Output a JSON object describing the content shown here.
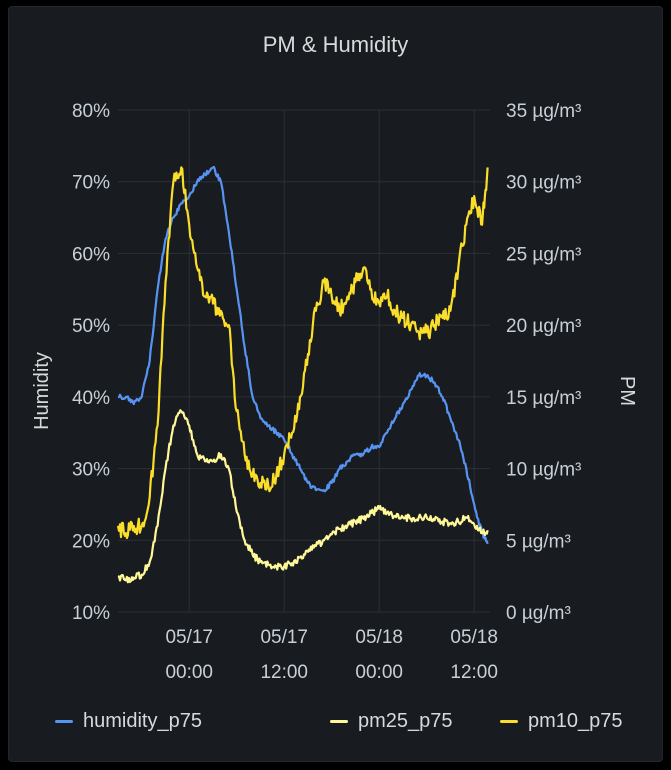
{
  "chart_data": {
    "type": "line",
    "title": "PM & Humidity",
    "y_left": {
      "label": "Humidity",
      "ticks": [
        "80%",
        "70%",
        "60%",
        "50%",
        "40%",
        "30%",
        "20%",
        "10%"
      ],
      "ylim": [
        10,
        80
      ]
    },
    "y_right": {
      "label": "PM",
      "ticks": [
        "35 µg/m³",
        "30 µg/m³",
        "25 µg/m³",
        "20 µg/m³",
        "15 µg/m³",
        "10 µg/m³",
        "5 µg/m³",
        "0 µg/m³"
      ],
      "ylim": [
        0,
        35
      ]
    },
    "x_ticks": [
      {
        "line1": "05/17",
        "line2": "00:00"
      },
      {
        "line1": "05/17",
        "line2": "12:00"
      },
      {
        "line1": "05/18",
        "line2": "00:00"
      },
      {
        "line1": "05/18",
        "line2": "12:00"
      }
    ],
    "x_tick_hours": [
      0,
      12,
      24,
      36
    ],
    "x_range_hours": [
      -9,
      38
    ],
    "grid": true,
    "legend_position": "bottom",
    "series": [
      {
        "name": "humidity_p75",
        "axis": "left",
        "color": "#5794f2",
        "points": [
          [
            -9,
            40
          ],
          [
            -8,
            40
          ],
          [
            -7,
            39
          ],
          [
            -6,
            40
          ],
          [
            -5,
            45
          ],
          [
            -4,
            55
          ],
          [
            -3,
            62
          ],
          [
            -2,
            65
          ],
          [
            -1,
            67
          ],
          [
            0,
            68
          ],
          [
            1,
            70
          ],
          [
            2,
            71
          ],
          [
            3,
            72
          ],
          [
            4,
            70
          ],
          [
            5,
            63
          ],
          [
            6,
            55
          ],
          [
            7,
            47
          ],
          [
            8,
            40
          ],
          [
            9,
            37
          ],
          [
            10,
            36
          ],
          [
            11,
            35
          ],
          [
            12,
            34
          ],
          [
            13,
            32
          ],
          [
            14,
            30
          ],
          [
            15,
            28
          ],
          [
            16,
            27
          ],
          [
            17,
            27
          ],
          [
            18,
            28
          ],
          [
            19,
            30
          ],
          [
            20,
            31
          ],
          [
            21,
            32
          ],
          [
            22,
            32
          ],
          [
            23,
            33
          ],
          [
            24,
            33
          ],
          [
            25,
            35
          ],
          [
            26,
            37
          ],
          [
            27,
            39
          ],
          [
            28,
            41
          ],
          [
            29,
            43
          ],
          [
            30,
            43
          ],
          [
            31,
            42
          ],
          [
            32,
            40
          ],
          [
            33,
            37
          ],
          [
            34,
            34
          ],
          [
            35,
            30
          ],
          [
            36,
            25
          ],
          [
            37,
            21
          ],
          [
            37.7,
            19.5
          ]
        ]
      },
      {
        "name": "pm25_p75",
        "axis": "right",
        "color": "#fff899",
        "points": [
          [
            -9,
            2.5
          ],
          [
            -8,
            2.2
          ],
          [
            -7,
            2.4
          ],
          [
            -6,
            2.6
          ],
          [
            -5,
            3.5
          ],
          [
            -4,
            6
          ],
          [
            -3,
            10
          ],
          [
            -2,
            13
          ],
          [
            -1,
            14
          ],
          [
            0,
            13
          ],
          [
            1,
            11
          ],
          [
            2,
            10.5
          ],
          [
            3,
            10.5
          ],
          [
            4,
            11
          ],
          [
            5,
            10
          ],
          [
            6,
            7
          ],
          [
            7,
            5
          ],
          [
            8,
            4
          ],
          [
            9,
            3.5
          ],
          [
            10,
            3.3
          ],
          [
            11,
            3.2
          ],
          [
            12,
            3.2
          ],
          [
            13,
            3.4
          ],
          [
            14,
            3.8
          ],
          [
            15,
            4.2
          ],
          [
            16,
            4.6
          ],
          [
            17,
            5
          ],
          [
            18,
            5.4
          ],
          [
            19,
            5.8
          ],
          [
            20,
            6
          ],
          [
            21,
            6.3
          ],
          [
            22,
            6.5
          ],
          [
            23,
            6.9
          ],
          [
            24,
            7.2
          ],
          [
            25,
            6.9
          ],
          [
            26,
            6.7
          ],
          [
            27,
            6.6
          ],
          [
            28,
            6.5
          ],
          [
            29,
            6.6
          ],
          [
            30,
            6.6
          ],
          [
            31,
            6.4
          ],
          [
            32,
            6.3
          ],
          [
            33,
            6.2
          ],
          [
            34,
            6.3
          ],
          [
            35,
            6.6
          ],
          [
            36,
            6.1
          ],
          [
            37,
            5.5
          ],
          [
            37.7,
            5.7
          ]
        ]
      },
      {
        "name": "pm10_p75",
        "axis": "right",
        "color": "#fade2a",
        "points": [
          [
            -9,
            6
          ],
          [
            -8,
            5.5
          ],
          [
            -7,
            6
          ],
          [
            -6,
            6
          ],
          [
            -5,
            8
          ],
          [
            -4,
            13
          ],
          [
            -3,
            23
          ],
          [
            -2,
            30
          ],
          [
            -1,
            31
          ],
          [
            0,
            27
          ],
          [
            1,
            24
          ],
          [
            2,
            22
          ],
          [
            3,
            21.5
          ],
          [
            4,
            21
          ],
          [
            5,
            20
          ],
          [
            6,
            14
          ],
          [
            7,
            11
          ],
          [
            8,
            9.5
          ],
          [
            9,
            9
          ],
          [
            10,
            8.8
          ],
          [
            11,
            9.5
          ],
          [
            12,
            11
          ],
          [
            13,
            12.5
          ],
          [
            14,
            15
          ],
          [
            15,
            18
          ],
          [
            16,
            21
          ],
          [
            17,
            23
          ],
          [
            18,
            22
          ],
          [
            19,
            21
          ],
          [
            20,
            22
          ],
          [
            21,
            23
          ],
          [
            22,
            24
          ],
          [
            23,
            22.5
          ],
          [
            24,
            21.5
          ],
          [
            25,
            22
          ],
          [
            26,
            21
          ],
          [
            27,
            20.5
          ],
          [
            28,
            20
          ],
          [
            29,
            19.5
          ],
          [
            30,
            19.5
          ],
          [
            31,
            20
          ],
          [
            32,
            20.5
          ],
          [
            33,
            21
          ],
          [
            34,
            24
          ],
          [
            35,
            27
          ],
          [
            36,
            29
          ],
          [
            37,
            27
          ],
          [
            37.7,
            31
          ]
        ]
      }
    ]
  }
}
